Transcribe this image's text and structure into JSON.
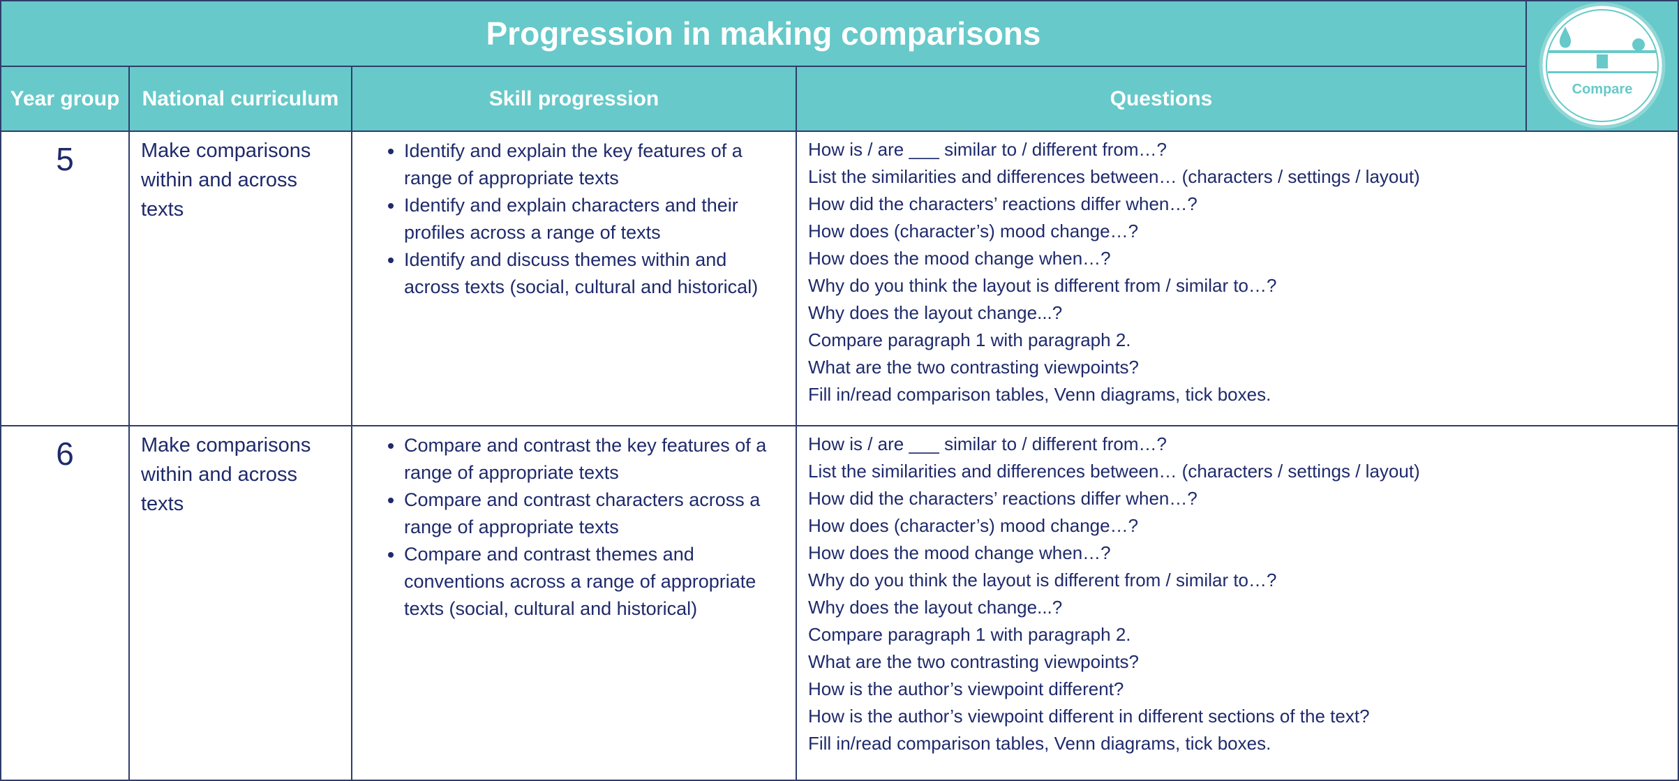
{
  "title": "Progression in making comparisons",
  "logo": {
    "label": "Compare"
  },
  "table": {
    "headers": [
      "Year group",
      "National curriculum",
      "Skill progression",
      "Questions"
    ],
    "rows": [
      {
        "year": "5",
        "curriculum": "Make comparisons within and across texts",
        "skills": [
          "Identify and explain the key features of a range of appropriate texts",
          "Identify and explain characters and their profiles across a range of texts",
          "Identify and discuss themes within and across texts (social, cultural and historical)"
        ],
        "questions": [
          "How is / are ___ similar to / different from…?",
          "List the similarities and differences between… (characters / settings / layout)",
          "How did the characters’ reactions differ when…?",
          "How does (character’s) mood change…?",
          "How does the mood change when…?",
          "Why do you think the layout is different from / similar to…?",
          "Why does the layout change...?",
          "Compare paragraph 1 with paragraph 2.",
          "What are the two contrasting viewpoints?",
          "Fill in/read comparison tables, Venn diagrams, tick boxes."
        ]
      },
      {
        "year": "6",
        "curriculum": "Make comparisons within and across texts",
        "skills": [
          "Compare and contrast the key features of a range of appropriate texts",
          "Compare and contrast characters across a range of appropriate texts",
          "Compare and contrast themes and conventions across a range of appropriate texts (social, cultural and historical)"
        ],
        "questions": [
          "How is / are ___ similar to / different from…?",
          "List the similarities and differences between… (characters / settings / layout)",
          "How did the characters’ reactions differ when…?",
          "How does (character’s) mood change…?",
          "How does the mood change when…?",
          "Why do you think the layout is different from / similar to…?",
          "Why does the layout change...?",
          "Compare paragraph 1 with paragraph 2.",
          "What are the two contrasting viewpoints?",
          "How is the author’s viewpoint different?",
          "How is the author’s viewpoint different in different sections of the text?",
          "Fill in/read comparison tables, Venn diagrams, tick boxes."
        ]
      }
    ]
  }
}
